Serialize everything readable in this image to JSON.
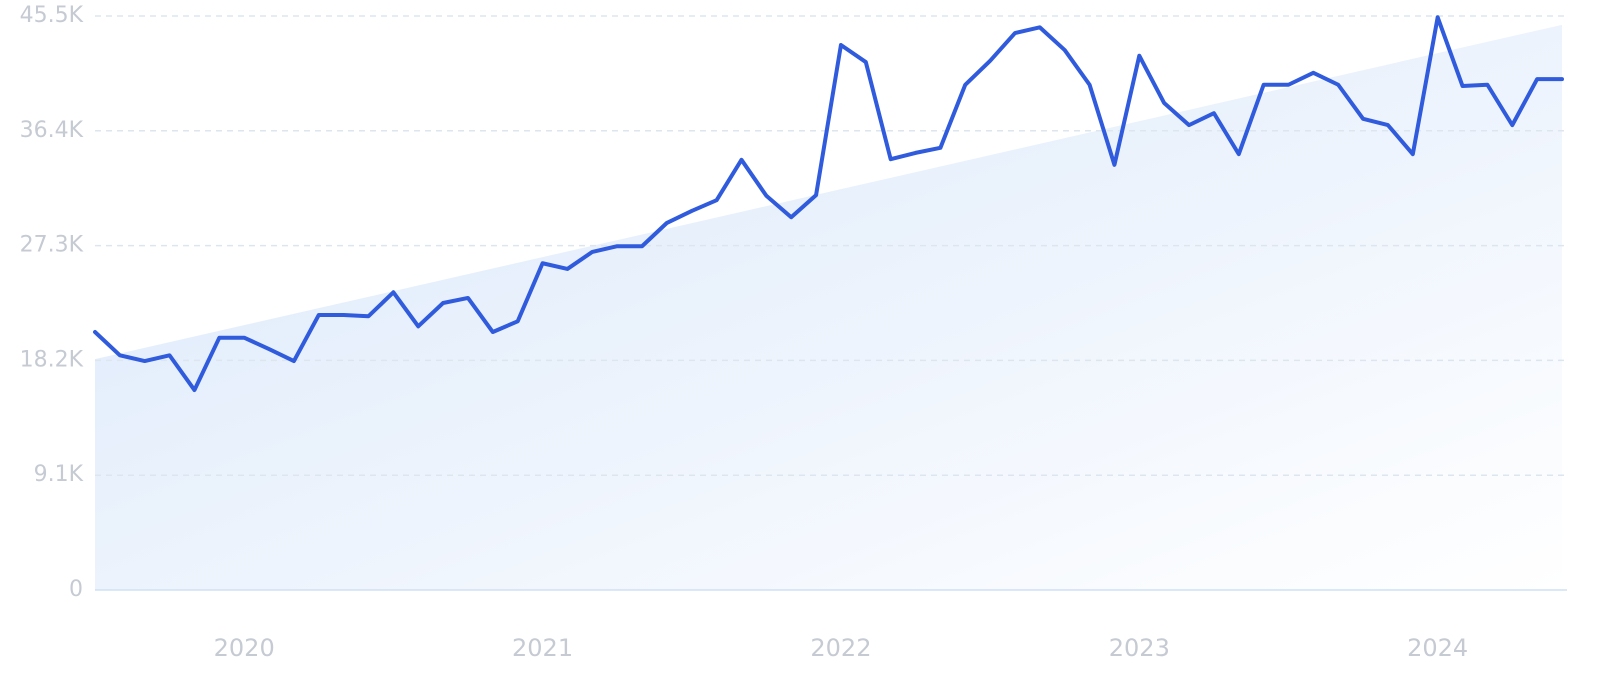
{
  "chart_data": {
    "type": "line",
    "categories": [
      null,
      null,
      null,
      null,
      null,
      null,
      "2020",
      null,
      null,
      null,
      null,
      null,
      null,
      null,
      null,
      null,
      null,
      null,
      "2021",
      null,
      null,
      null,
      null,
      null,
      null,
      null,
      null,
      null,
      null,
      null,
      "2022",
      null,
      null,
      null,
      null,
      null,
      null,
      null,
      null,
      null,
      null,
      null,
      "2023",
      null,
      null,
      null,
      null,
      null,
      null,
      null,
      null,
      null,
      null,
      null,
      "2024",
      null,
      null,
      null,
      null,
      null
    ],
    "series": [
      {
        "name": null,
        "color": "#2f5bdc",
        "values": [
          20450,
          18600,
          18150,
          18600,
          15850,
          20000,
          20000,
          19100,
          18150,
          21800,
          21800,
          21700,
          23600,
          20900,
          22750,
          23150,
          20450,
          21300,
          25900,
          25450,
          26800,
          27250,
          27250,
          29100,
          30050,
          30900,
          34100,
          31250,
          29550,
          31300,
          43200,
          41850,
          34150,
          34650,
          35050,
          40050,
          41950,
          44150,
          44600,
          42800,
          40050,
          33700,
          42350,
          38600,
          36850,
          37800,
          34550,
          40050,
          40050,
          41000,
          40050,
          37350,
          36850,
          34550,
          45400,
          39950,
          40050,
          36850,
          40500,
          40500
        ]
      }
    ],
    "trend": [
      18300,
      44800
    ],
    "ylim": [
      0,
      45500
    ],
    "yticks": [
      0,
      {
        "value": 9100,
        "label": "9.1K"
      },
      {
        "value": 18200,
        "label": "18.2K"
      },
      {
        "value": 27300,
        "label": "27.3K"
      },
      {
        "value": 36400,
        "label": "36.4K"
      },
      {
        "value": 45500,
        "label": "45.5K"
      }
    ],
    "grid": true
  }
}
